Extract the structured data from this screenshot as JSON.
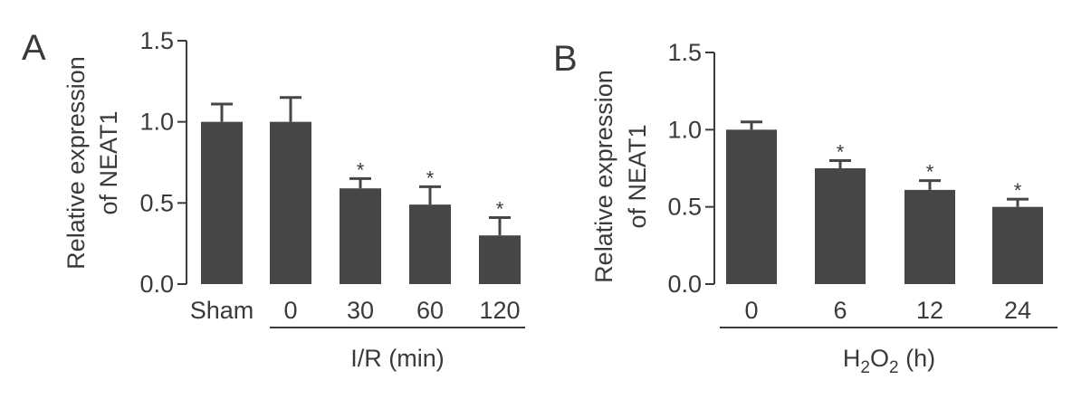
{
  "colors": {
    "bar": "#464646",
    "axis": "#3a3a3a",
    "text": "#3a3a3a"
  },
  "chart_data": [
    {
      "type": "bar",
      "panel": "A",
      "categories": [
        "Sham",
        "0",
        "30",
        "60",
        "120"
      ],
      "values": [
        1.0,
        1.0,
        0.59,
        0.49,
        0.3
      ],
      "errors": [
        0.11,
        0.15,
        0.06,
        0.11,
        0.11
      ],
      "significance": [
        "",
        "",
        "*",
        "*",
        "*"
      ],
      "ylabel_line1": "Relative expression",
      "ylabel_line2": "of NEAT1",
      "ylim": [
        0,
        1.5
      ],
      "yticks": [
        "0.0",
        "0.5",
        "1.0",
        "1.5"
      ],
      "xlabel": "I/R (min)"
    },
    {
      "type": "bar",
      "panel": "B",
      "categories": [
        "0",
        "6",
        "12",
        "24"
      ],
      "values": [
        1.0,
        0.75,
        0.61,
        0.5
      ],
      "errors": [
        0.05,
        0.05,
        0.06,
        0.05
      ],
      "significance": [
        "",
        "*",
        "*",
        "*"
      ],
      "ylabel_line1": "Relative expression",
      "ylabel_line2": "of NEAT1",
      "ylim": [
        0,
        1.5
      ],
      "yticks": [
        "0.0",
        "0.5",
        "1.0",
        "1.5"
      ],
      "xlabel_parts": [
        "H",
        "2",
        "O",
        "2",
        " (h)"
      ]
    }
  ]
}
